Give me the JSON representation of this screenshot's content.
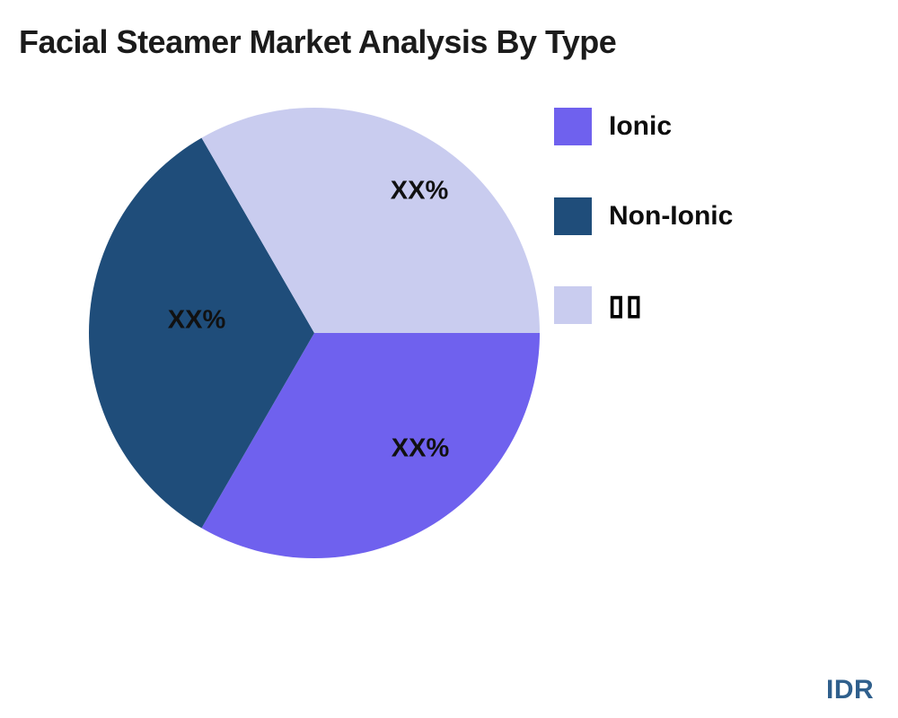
{
  "chart_data": {
    "type": "pie",
    "title": "Facial Steamer Market Analysis By Type",
    "slices": [
      {
        "name": "Ionic",
        "value": 33.33,
        "pct_label": "XX%",
        "color": "#6F61EE"
      },
      {
        "name": "Non-Ionic",
        "value": 33.33,
        "pct_label": "XX%",
        "color": "#1F4D7A"
      },
      {
        "name": "▯▯",
        "value": 33.33,
        "pct_label": "XX%",
        "color": "#C9CCEF"
      }
    ],
    "start_angle_deg": 0,
    "direction": "clockwise",
    "legend_position": "right",
    "labels_are_placeholders": true
  },
  "footer": {
    "watermark": "IDR",
    "watermark_color": "#2F5F8C"
  }
}
